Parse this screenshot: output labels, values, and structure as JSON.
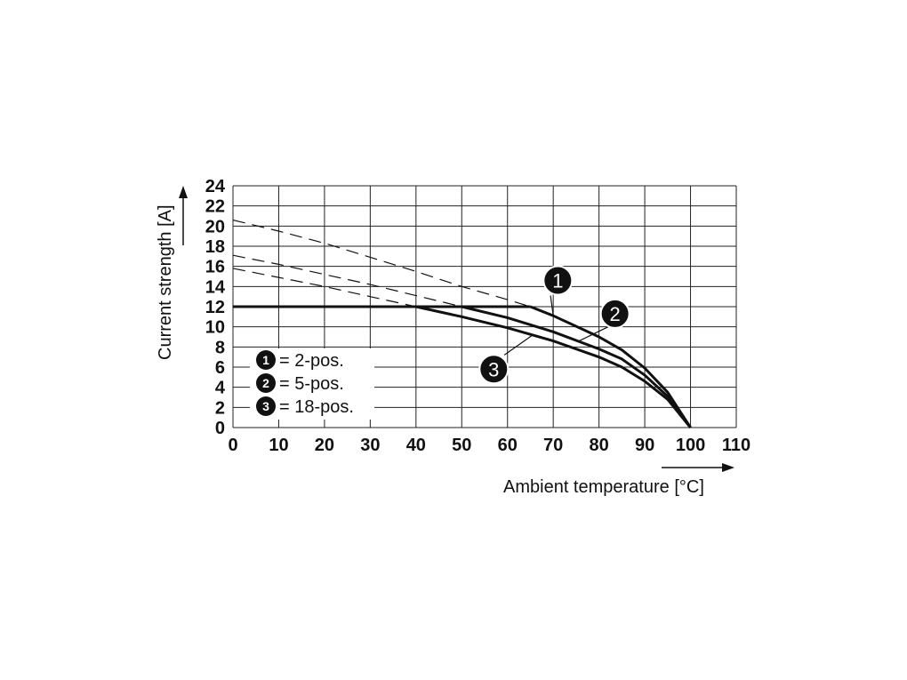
{
  "chart_data": {
    "type": "line",
    "xlabel": "Ambient temperature [°C]",
    "ylabel": "Current strength [A]",
    "xlim": [
      0,
      110
    ],
    "ylim": [
      0,
      24
    ],
    "x_ticks": [
      "0",
      "10",
      "20",
      "30",
      "40",
      "50",
      "60",
      "70",
      "80",
      "90",
      "100",
      "110"
    ],
    "y_ticks": [
      "0",
      "2",
      "4",
      "6",
      "8",
      "10",
      "12",
      "14",
      "16",
      "18",
      "20",
      "22",
      "24"
    ],
    "grid": true,
    "limit_line": {
      "y": 12
    },
    "series": [
      {
        "name": "2-pos.",
        "marker": "1",
        "color": "#111111",
        "points": [
          [
            0,
            20.6
          ],
          [
            10,
            19.5
          ],
          [
            20,
            18.3
          ],
          [
            30,
            16.9
          ],
          [
            40,
            15.5
          ],
          [
            50,
            14.0
          ],
          [
            60,
            12.7
          ],
          [
            65,
            12.0
          ],
          [
            70,
            11.1
          ],
          [
            80,
            9.0
          ],
          [
            85,
            7.7
          ],
          [
            90,
            5.9
          ],
          [
            95,
            3.5
          ],
          [
            100,
            0
          ]
        ]
      },
      {
        "name": "5-pos.",
        "marker": "2",
        "color": "#111111",
        "points": [
          [
            0,
            17.1
          ],
          [
            10,
            16.2
          ],
          [
            20,
            15.2
          ],
          [
            30,
            14.2
          ],
          [
            40,
            13.1
          ],
          [
            50,
            12.0
          ],
          [
            60,
            10.9
          ],
          [
            70,
            9.5
          ],
          [
            80,
            7.8
          ],
          [
            85,
            6.8
          ],
          [
            90,
            5.2
          ],
          [
            95,
            3.1
          ],
          [
            100,
            0
          ]
        ]
      },
      {
        "name": "18-pos.",
        "marker": "3",
        "color": "#111111",
        "points": [
          [
            0,
            15.8
          ],
          [
            10,
            14.9
          ],
          [
            20,
            14.0
          ],
          [
            30,
            13.0
          ],
          [
            40,
            12.0
          ],
          [
            50,
            11.0
          ],
          [
            60,
            9.9
          ],
          [
            70,
            8.6
          ],
          [
            80,
            7.0
          ],
          [
            85,
            6.0
          ],
          [
            90,
            4.6
          ],
          [
            95,
            2.8
          ],
          [
            100,
            0
          ]
        ]
      }
    ],
    "legend": [
      {
        "marker": "1",
        "text": "= 2-pos."
      },
      {
        "marker": "2",
        "text": "= 5-pos."
      },
      {
        "marker": "3",
        "text": "= 18-pos."
      }
    ],
    "legend_position": "bottom-left",
    "callouts": [
      "1",
      "2",
      "3"
    ]
  }
}
